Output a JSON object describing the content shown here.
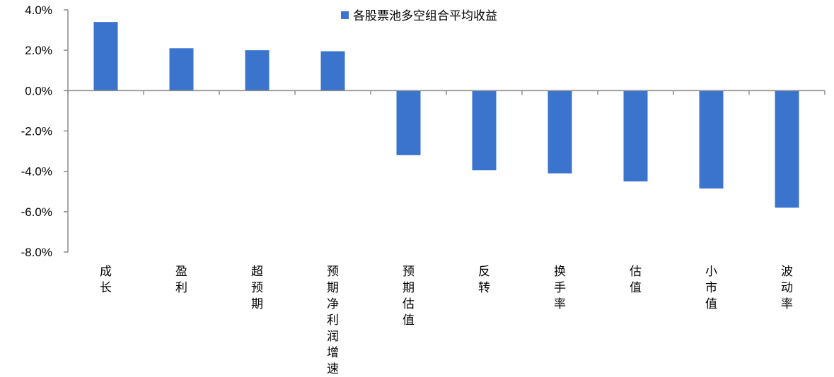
{
  "chart_data": {
    "type": "bar",
    "categories": [
      "成长",
      "盈利",
      "超预期",
      "预期净利润增速",
      "预期估值",
      "反转",
      "换手率",
      "估值",
      "小市值",
      "波动率"
    ],
    "series": [
      {
        "name": "各股票池多空组合平均收益",
        "color": "#3a74cc",
        "values": [
          3.4,
          2.1,
          2.0,
          1.95,
          -3.2,
          -3.95,
          -4.1,
          -4.5,
          -4.85,
          -5.8
        ]
      }
    ],
    "ylim": [
      -8.0,
      4.0
    ],
    "yticks": [
      "4.0%",
      "2.0%",
      "0.0%",
      "-2.0%",
      "-4.0%",
      "-6.0%",
      "-8.0%"
    ],
    "xlabel": "",
    "ylabel": "",
    "title": "",
    "grid": false,
    "legend_position": "top-center",
    "category_label_orientation": "vertical"
  }
}
